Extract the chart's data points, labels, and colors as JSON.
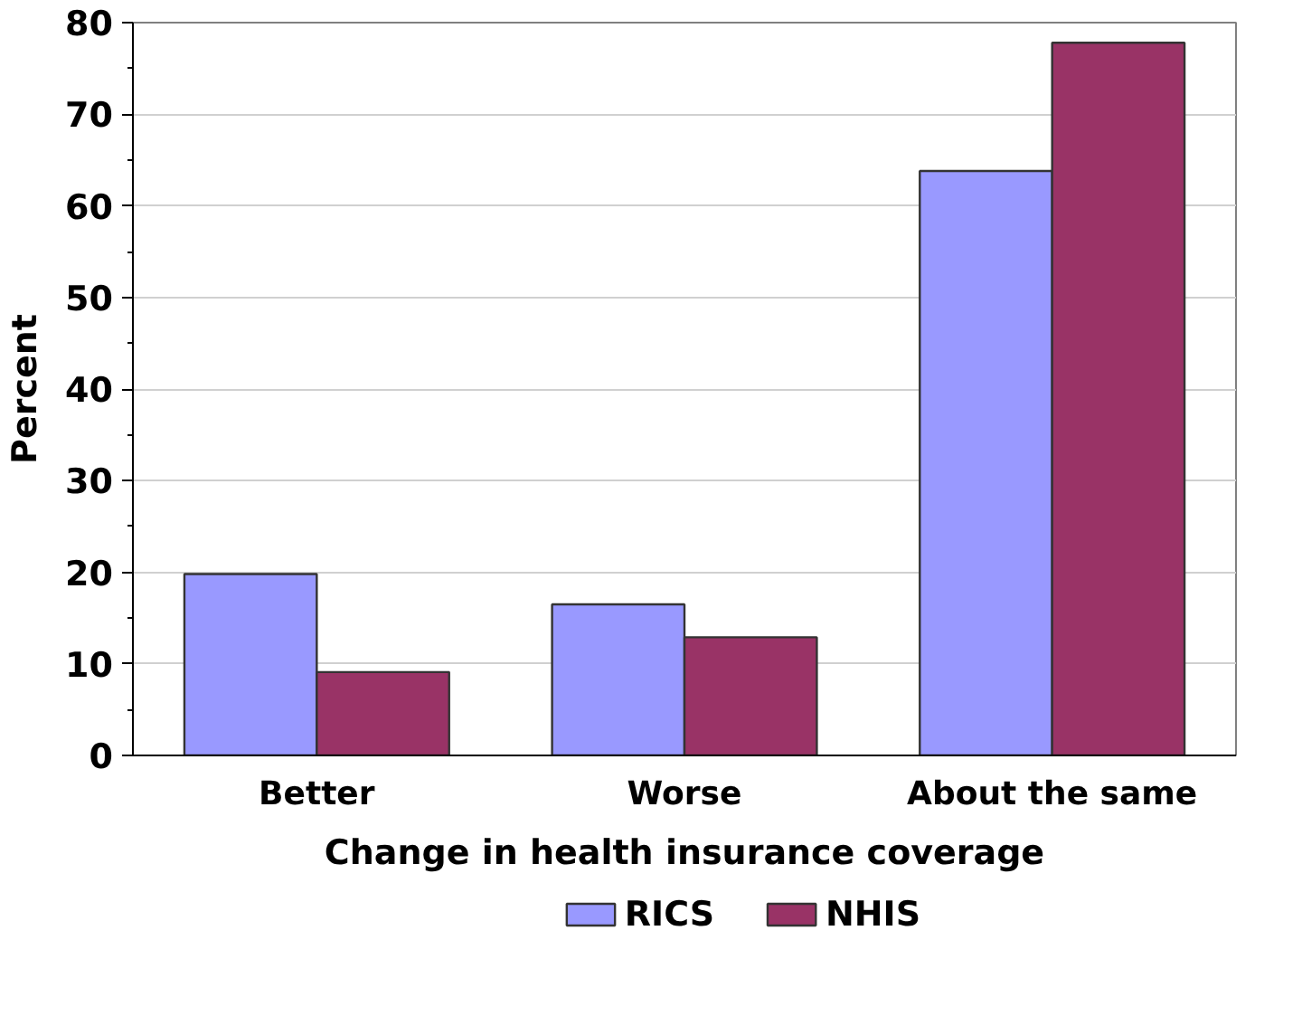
{
  "chart_data": {
    "type": "bar",
    "xlabel": "Change in health insurance coverage",
    "ylabel": "Percent",
    "categories": [
      "Better",
      "Worse",
      "About the same"
    ],
    "series": [
      {
        "name": "RICS",
        "color": "#9999ff",
        "values": [
          19.8,
          16.5,
          63.8
        ]
      },
      {
        "name": "NHIS",
        "color": "#993366",
        "values": [
          9.1,
          12.9,
          77.8
        ]
      }
    ],
    "ylim": [
      0,
      80
    ],
    "yticks": [
      0,
      10,
      20,
      30,
      40,
      50,
      60,
      70,
      80
    ],
    "grid": "y",
    "legend": "bottom"
  }
}
